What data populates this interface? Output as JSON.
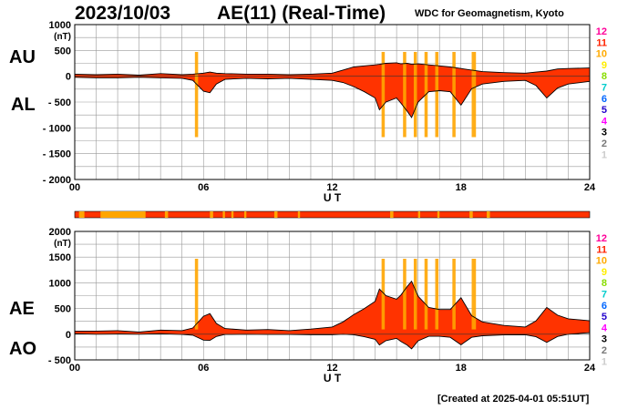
{
  "header": {
    "date": "2023/10/03",
    "title": "AE(11) (Real-Time)",
    "credit": "WDC for Geomagnetism, Kyoto"
  },
  "footer": {
    "created": "[Created at 2025-04-01 05:51UT]"
  },
  "side_labels": {
    "au": "AU",
    "al": "AL",
    "ae": "AE",
    "ao": "AO"
  },
  "colors": {
    "fill": "#ff3300",
    "orange": "#ffa500",
    "strip": "#ff3300",
    "grid": "#999999"
  },
  "station_legend": [
    {
      "label": "12",
      "color": "#ff0099"
    },
    {
      "label": "11",
      "color": "#ff2200"
    },
    {
      "label": "10",
      "color": "#ffaa00"
    },
    {
      "label": "9",
      "color": "#ffee00"
    },
    {
      "label": "8",
      "color": "#88dd00"
    },
    {
      "label": "7",
      "color": "#00cccc"
    },
    {
      "label": "6",
      "color": "#0066ff"
    },
    {
      "label": "5",
      "color": "#2200cc"
    },
    {
      "label": "4",
      "color": "#ff00ff"
    },
    {
      "label": "3",
      "color": "#000000"
    },
    {
      "label": "2",
      "color": "#777777"
    },
    {
      "label": "1",
      "color": "#cccccc"
    }
  ],
  "chart_data": [
    {
      "type": "area",
      "name": "AU/AL",
      "ylabel": "(nT)",
      "xlabel": "U T",
      "ylim": [
        -2000,
        1000
      ],
      "yticks": [
        "1000",
        "500",
        "0",
        "- 500",
        "- 1000",
        "- 1500",
        "- 2000"
      ],
      "xticks": [
        "00",
        "06",
        "12",
        "18",
        "24"
      ],
      "grid": true,
      "x": [
        0,
        1,
        2,
        3,
        4,
        5,
        5.5,
        6,
        6.3,
        6.6,
        7,
        8,
        9,
        10,
        11,
        12,
        12.5,
        13,
        13.5,
        14,
        14.2,
        14.5,
        15,
        15.2,
        15.5,
        15.7,
        16,
        16.5,
        17,
        17.5,
        18,
        18.5,
        19,
        20,
        21,
        21.5,
        22,
        22.5,
        23,
        24
      ],
      "series": [
        {
          "name": "AU",
          "values": [
            40,
            30,
            40,
            20,
            50,
            30,
            40,
            60,
            80,
            60,
            50,
            40,
            40,
            30,
            40,
            60,
            120,
            180,
            200,
            220,
            230,
            250,
            260,
            240,
            250,
            230,
            240,
            220,
            200,
            180,
            150,
            120,
            90,
            70,
            60,
            80,
            100,
            140,
            150,
            160
          ]
        },
        {
          "name": "AL",
          "values": [
            -20,
            -30,
            -30,
            -20,
            -30,
            -40,
            -80,
            -290,
            -320,
            -150,
            -60,
            -40,
            -50,
            -40,
            -60,
            -80,
            -120,
            -200,
            -300,
            -420,
            -650,
            -500,
            -420,
            -520,
            -680,
            -800,
            -500,
            -300,
            -280,
            -300,
            -560,
            -240,
            -150,
            -100,
            -80,
            -180,
            -420,
            -230,
            -150,
            -100
          ]
        }
      ]
    },
    {
      "type": "area",
      "name": "AE/AO",
      "ylabel": "(nT)",
      "xlabel": "U T",
      "ylim": [
        -500,
        2000
      ],
      "yticks": [
        "2000",
        "1500",
        "1000",
        "500",
        "0",
        "- 500"
      ],
      "xticks": [
        "00",
        "06",
        "12",
        "18",
        "24"
      ],
      "grid": true,
      "x": [
        0,
        1,
        2,
        3,
        4,
        5,
        5.5,
        6,
        6.3,
        6.6,
        7,
        8,
        9,
        10,
        11,
        12,
        12.5,
        13,
        13.5,
        14,
        14.2,
        14.5,
        15,
        15.2,
        15.5,
        15.7,
        16,
        16.5,
        17,
        17.5,
        18,
        18.5,
        19,
        20,
        21,
        21.5,
        22,
        22.5,
        23,
        24
      ],
      "series": [
        {
          "name": "AE",
          "values": [
            60,
            60,
            70,
            40,
            80,
            70,
            120,
            350,
            400,
            210,
            110,
            80,
            90,
            70,
            100,
            140,
            240,
            380,
            500,
            640,
            880,
            750,
            680,
            760,
            930,
            1030,
            740,
            520,
            480,
            480,
            710,
            360,
            240,
            170,
            140,
            260,
            520,
            370,
            300,
            260
          ]
        },
        {
          "name": "AO",
          "values": [
            10,
            0,
            5,
            0,
            10,
            -5,
            -20,
            -115,
            -120,
            -45,
            -5,
            0,
            -5,
            -5,
            -10,
            -10,
            0,
            -10,
            -50,
            -100,
            -210,
            -125,
            -80,
            -140,
            -215,
            -285,
            -130,
            -40,
            -40,
            -60,
            -205,
            -60,
            -30,
            -15,
            -10,
            -50,
            -160,
            -45,
            0,
            30
          ]
        }
      ]
    }
  ]
}
